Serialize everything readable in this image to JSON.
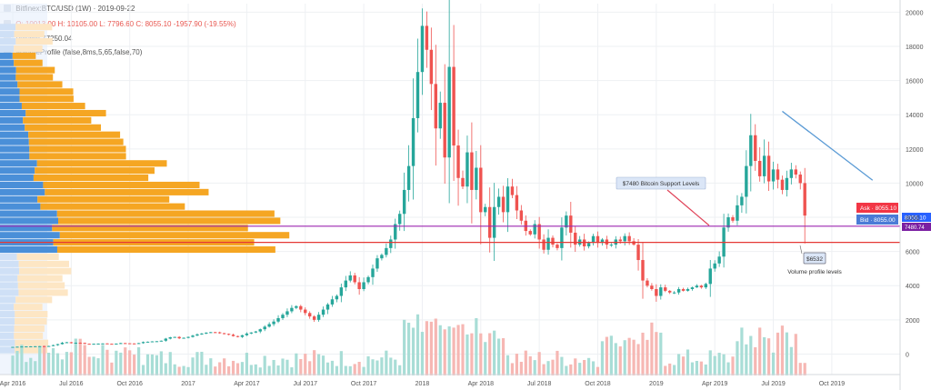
{
  "header": {
    "symbol_line": "Bitfinex:BTC/USD (1W) · 2019-09-22",
    "ohlc_line": "O: 10013.00  H: 10105.00  L: 7796.60  C: 8055.10  -1957.90  (-19.55%)",
    "volume_line": "Volume  77250.04",
    "vp_line": "VolumeProfile (false,8ms,5,65,false,70)"
  },
  "chart_data": {
    "type": "candlestick",
    "title": "",
    "ylim": [
      -1200,
      20500
    ],
    "y_ticks": [
      20000,
      18000,
      16000,
      14000,
      12000,
      10000,
      8000,
      6000,
      4000,
      2000,
      0
    ],
    "x_tick_labels": [
      "Apr 2016",
      "Jul 2016",
      "Oct 2016",
      "2017",
      "Apr 2017",
      "Jul 2017",
      "Oct 2017",
      "2018",
      "Apr 2018",
      "Jul 2018",
      "Oct 2018",
      "2019",
      "Apr 2019",
      "Jul 2019",
      "Oct 2019"
    ],
    "x_tick_weeks": [
      0,
      13,
      26,
      39,
      52,
      65,
      78,
      91,
      104,
      117,
      130,
      143,
      156,
      169,
      182
    ],
    "weeks_total": 190,
    "close_series": [
      420,
      430,
      440,
      445,
      450,
      455,
      460,
      450,
      470,
      520,
      580,
      660,
      690,
      640,
      660,
      650,
      600,
      580,
      600,
      610,
      620,
      600,
      590,
      610,
      640,
      630,
      620,
      610,
      640,
      700,
      720,
      740,
      750,
      780,
      900,
      980,
      1000,
      920,
      950,
      1000,
      1080,
      1150,
      1200,
      1250,
      1280,
      1270,
      1220,
      1180,
      1130,
      1050,
      1000,
      1100,
      1200,
      1260,
      1320,
      1450,
      1600,
      1750,
      1900,
      2100,
      2300,
      2500,
      2700,
      2800,
      2600,
      2400,
      2200,
      2000,
      2300,
      2600,
      2900,
      3200,
      3400,
      3900,
      4300,
      4600,
      4200,
      3800,
      4200,
      4500,
      5000,
      5600,
      5800,
      6200,
      6700,
      7600,
      8200,
      9600,
      11000,
      13800,
      16500,
      19200,
      17800,
      15800,
      13200,
      14700,
      11500,
      16800,
      12200,
      10300,
      9800,
      11800,
      9600,
      10900,
      8300,
      8600,
      6800,
      8600,
      9200,
      8300,
      9800,
      9300,
      8400,
      7800,
      7200,
      7000,
      7600,
      6700,
      6100,
      6800,
      6400,
      6200,
      7400,
      8100,
      7100,
      6400,
      6700,
      6300,
      6500,
      6900,
      6500,
      6700,
      6400,
      6400,
      6700,
      6600,
      6900,
      6600,
      6400,
      5500,
      4300,
      4000,
      3800,
      3400,
      3900,
      3700,
      3600,
      3600,
      3800,
      3700,
      3800,
      3900,
      4000,
      3900,
      4100,
      5000,
      5300,
      5700,
      7400,
      8000,
      7800,
      8700,
      9200,
      11000,
      12800,
      11300,
      10400,
      11600,
      10100,
      10800,
      10200,
      9600,
      10300,
      10800,
      10500,
      10000,
      8100
    ],
    "annotations": [
      {
        "text": "$7480 Bitcoin Support Levels",
        "type": "callout"
      },
      {
        "text": "$6532",
        "type": "callout"
      },
      {
        "text": "Volume profile levels",
        "type": "label"
      }
    ],
    "horizontal_lines": [
      {
        "value": 7480,
        "color": "#9c27b0"
      },
      {
        "value": 6532,
        "color": "#e53935"
      }
    ],
    "trendline": {
      "from_week": 171,
      "from_price": 14200,
      "to_week": 185,
      "to_price": 9000,
      "color": "#5b9bd5"
    },
    "price_tags": [
      {
        "label": "Ask",
        "value": "8055.10",
        "color": "#f23645"
      },
      {
        "label": "Bid",
        "value": "8055.00",
        "color": "#4a7bd6"
      },
      {
        "label": "",
        "value": "8055.10",
        "color": "#2962ff"
      },
      {
        "label": "",
        "value": "7480.74",
        "color": "#7b1fa2"
      }
    ],
    "up_color": "#26a69a",
    "down_color": "#ef5350",
    "vp_buy_color": "#4a8fd8",
    "vp_sell_color": "#f5a623",
    "grid": true
  }
}
